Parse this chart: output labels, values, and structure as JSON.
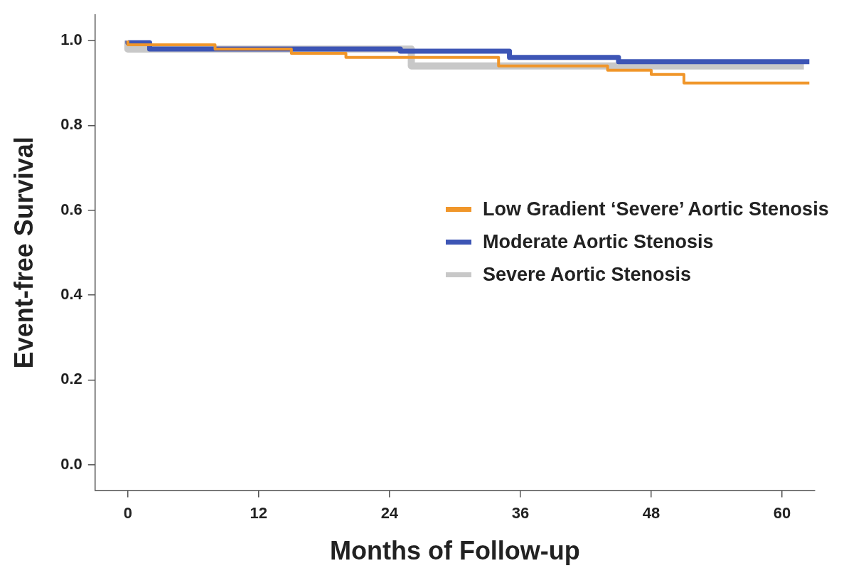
{
  "chart_data": {
    "type": "step",
    "xlabel": "Months of Follow-up",
    "ylabel": "Event-free Survival",
    "xlim": [
      -3,
      63
    ],
    "xticks": [
      0,
      12,
      24,
      36,
      48,
      60
    ],
    "ylim": [
      -0.06,
      1.06
    ],
    "yticks": [
      {
        "value": 0,
        "label": "0.0"
      },
      {
        "value": 0.2,
        "label": "0.2"
      },
      {
        "value": 0.4,
        "label": "0.4"
      },
      {
        "value": 0.6,
        "label": "0.6"
      },
      {
        "value": 0.8,
        "label": "0.8"
      },
      {
        "value": 1,
        "label": "1.0"
      }
    ],
    "grid": false,
    "legend": "right",
    "marker": "none",
    "line_style": "solid",
    "series": [
      {
        "name": "Low Gradient ‘Severe’ Aortic Stenosis",
        "color": "#f0962a",
        "x": [
          0,
          8,
          15,
          20,
          34,
          44,
          48,
          51,
          54,
          62.5
        ],
        "values": [
          1.0,
          0.99,
          0.98,
          0.97,
          0.96,
          0.94,
          0.93,
          0.92,
          0.9,
          0.9
        ]
      },
      {
        "name": "Moderate Aortic Stenosis",
        "color": "#3d55b5",
        "x": [
          0,
          2,
          25,
          35,
          45,
          48,
          62.5
        ],
        "values": [
          1.0,
          0.995,
          0.98,
          0.975,
          0.96,
          0.95,
          0.95
        ]
      },
      {
        "name": "Severe Aortic Stenosis",
        "color": "#c8c8c8",
        "x": [
          0,
          26,
          36,
          62
        ],
        "values": [
          1.0,
          0.98,
          0.94,
          0.94
        ]
      }
    ]
  }
}
